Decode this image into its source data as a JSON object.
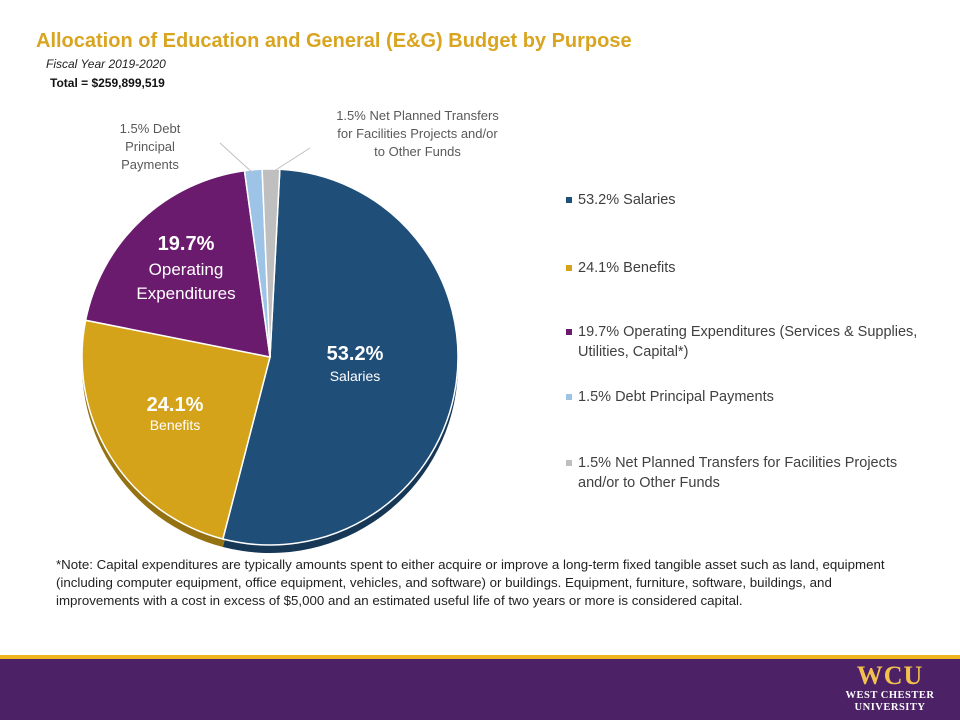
{
  "header": {
    "title": "Allocation of Education and General (E&G) Budget by Purpose",
    "subtitle": "Fiscal Year 2019-2020",
    "total": "Total = $259,899,519"
  },
  "chart_data": {
    "type": "pie",
    "title": "Allocation of Education and General (E&G) Budget by Purpose",
    "subtitle": "Fiscal Year 2019-2020",
    "slices": [
      {
        "label": "Salaries",
        "value": 53.2,
        "color": "#1f4e79",
        "pct_text": "53.2%",
        "inner_label": "Salaries",
        "legend": "53.2% Salaries"
      },
      {
        "label": "Benefits",
        "value": 24.1,
        "color": "#d4a31a",
        "pct_text": "24.1%",
        "inner_label": "Benefits",
        "legend": "24.1% Benefits"
      },
      {
        "label": "Operating Expenditures",
        "value": 19.7,
        "color": "#6b1b6e",
        "pct_text": "19.7%",
        "inner_label": "Operating Expenditures",
        "legend": "19.7% Operating Expenditures (Services & Supplies, Utilities, Capital*)"
      },
      {
        "label": "Debt Principal Payments",
        "value": 1.5,
        "color": "#9dc3e6",
        "pct_text": "1.5%",
        "inner_label": "",
        "legend": "1.5% Debt Principal Payments"
      },
      {
        "label": "Net Planned Transfers for Facilities Projects and/or to Other Funds",
        "value": 1.5,
        "color": "#bfbfbf",
        "pct_text": "1.5%",
        "inner_label": "",
        "legend": "1.5% Net Planned Transfers for Facilities Projects and/or to Other Funds"
      }
    ],
    "callouts": {
      "debt": [
        "1.5% Debt",
        "Principal",
        "Payments"
      ],
      "transfers": [
        "1.5% Net Planned Transfers",
        "for Facilities Projects and/or",
        "to Other Funds"
      ]
    },
    "legend_position": "right"
  },
  "note": "*Note: Capital expenditures are typically amounts spent to either acquire or improve a long-term fixed tangible asset such as land, equipment (including computer equipment, office equipment, vehicles, and software) or buildings. Equipment, furniture, software, buildings, and improvements with a cost in excess of $5,000 and an estimated useful life of two years or more is considered capital.",
  "footer": {
    "logo_main": "WCU",
    "logo_line1": "WEST CHESTER",
    "logo_line2": "UNIVERSITY",
    "colors": {
      "band": "#4c2166",
      "accent": "#f0b51e"
    }
  }
}
